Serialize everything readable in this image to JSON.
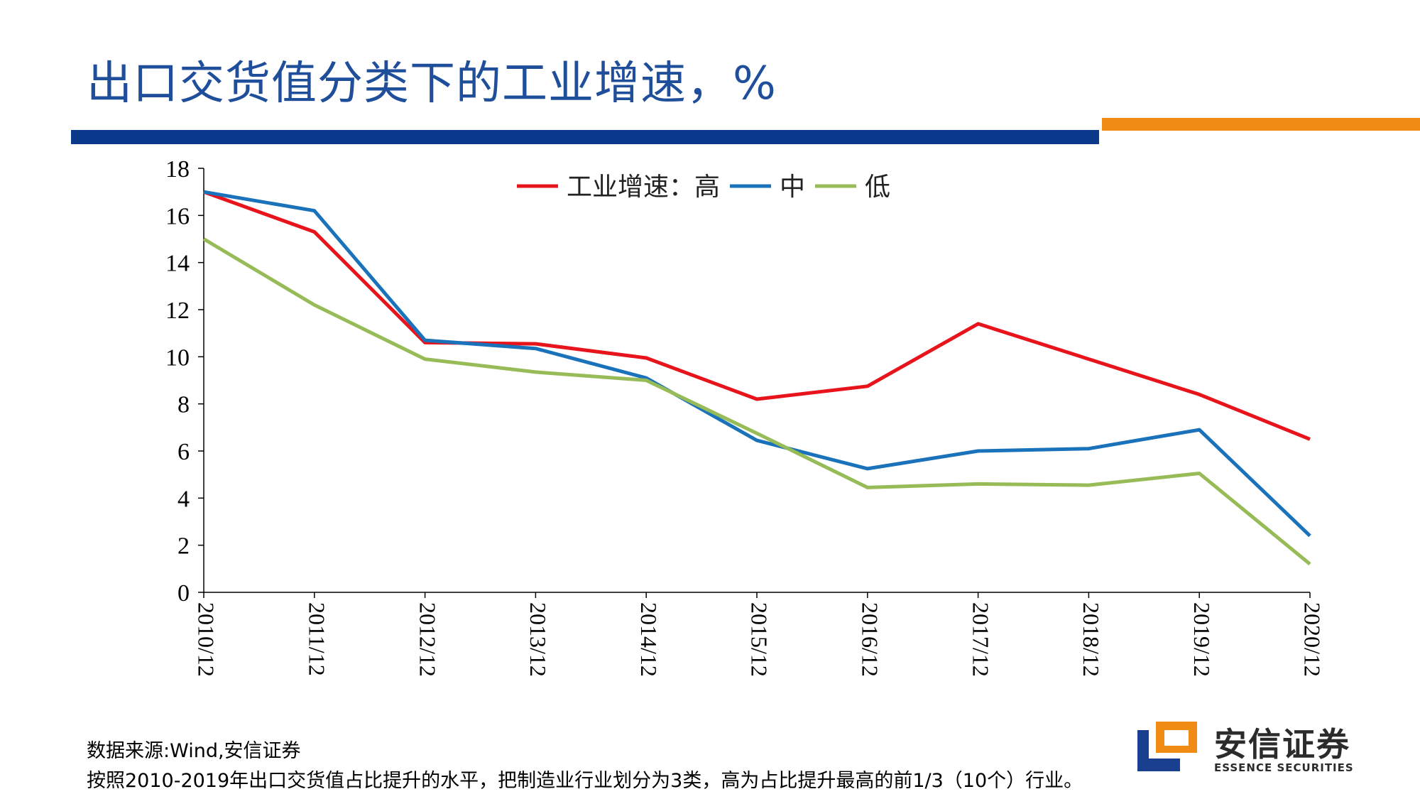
{
  "title": "出口交货值分类下的工业增速，%",
  "colors": {
    "accent_blue": "#0b3a8c",
    "accent_orange": "#f08c14",
    "title": "#1f4e9b"
  },
  "chart_data": {
    "type": "line",
    "title": "",
    "xlabel": "",
    "ylabel": "",
    "ylim": [
      0,
      18
    ],
    "yticks": [
      "0",
      "2",
      "4",
      "6",
      "8",
      "10",
      "12",
      "14",
      "16",
      "18"
    ],
    "x": [
      "2010/12",
      "2011/12",
      "2012/12",
      "2013/12",
      "2014/12",
      "2015/12",
      "2016/12",
      "2017/12",
      "2018/12",
      "2019/12",
      "2020/12"
    ],
    "legend_prefix": "工业增速：",
    "legend_position": "top-center",
    "grid": false,
    "series": [
      {
        "name": "高",
        "color": "#e8141c",
        "values": [
          17.0,
          15.3,
          10.6,
          10.55,
          9.95,
          8.2,
          8.75,
          11.4,
          9.9,
          8.4,
          6.5
        ]
      },
      {
        "name": "中",
        "color": "#1a72bb",
        "values": [
          17.0,
          16.2,
          10.7,
          10.35,
          9.1,
          6.45,
          5.25,
          6.0,
          6.1,
          6.9,
          2.4
        ]
      },
      {
        "name": "低",
        "color": "#97bb56",
        "values": [
          15.0,
          12.2,
          9.9,
          9.35,
          9.0,
          6.75,
          4.45,
          4.6,
          4.55,
          5.05,
          1.2
        ]
      }
    ]
  },
  "footnotes": {
    "source": "数据来源:Wind,安信证券",
    "note": "按照2010-2019年出口交货值占比提升的水平，把制造业行业划分为3类，高为占比提升最高的前1/3（10个）行业。"
  },
  "logo": {
    "icon": "essence-logo-icon",
    "name_cn": "安信证券",
    "name_en": "ESSENCE SECURITIES"
  }
}
